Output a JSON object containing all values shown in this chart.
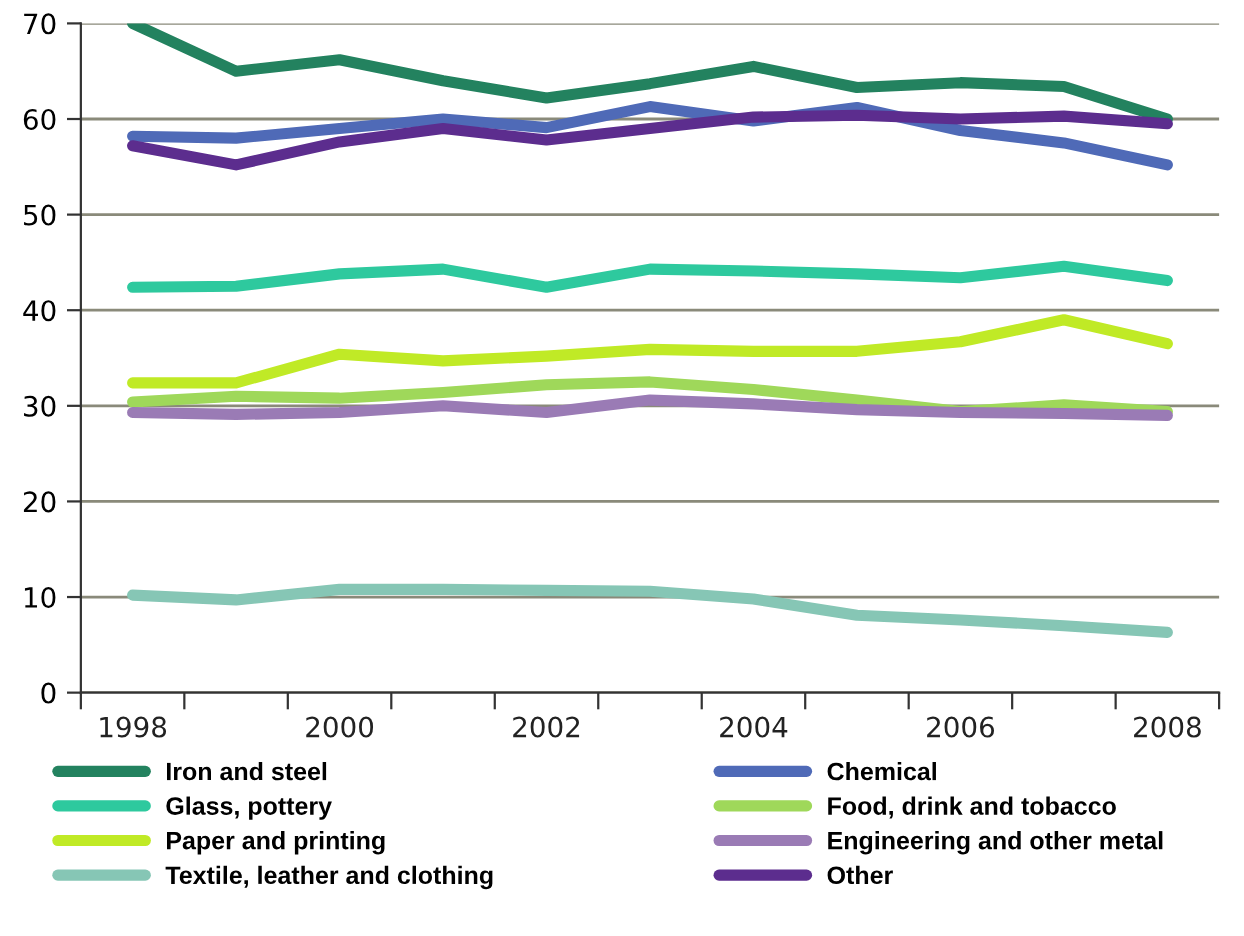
{
  "chart_data": {
    "type": "line",
    "x": [
      1998,
      1999,
      2000,
      2001,
      2002,
      2003,
      2004,
      2005,
      2006,
      2007,
      2008
    ],
    "xlim": [
      1997.5,
      2008.5
    ],
    "xticks": [
      {
        "value": 1997.5,
        "label": null
      },
      {
        "value": 1998,
        "label": "1998"
      },
      {
        "value": 1998.5,
        "label": null
      },
      {
        "value": 1999.5,
        "label": null
      },
      {
        "value": 2000,
        "label": "2000"
      },
      {
        "value": 2000.5,
        "label": null
      },
      {
        "value": 2001.5,
        "label": null
      },
      {
        "value": 2002,
        "label": "2002"
      },
      {
        "value": 2002.5,
        "label": null
      },
      {
        "value": 2003.5,
        "label": null
      },
      {
        "value": 2004,
        "label": "2004"
      },
      {
        "value": 2004.5,
        "label": null
      },
      {
        "value": 2005.5,
        "label": null
      },
      {
        "value": 2006,
        "label": "2006"
      },
      {
        "value": 2006.5,
        "label": null
      },
      {
        "value": 2007.5,
        "label": null
      },
      {
        "value": 2008,
        "label": "2008"
      },
      {
        "value": 2008.5,
        "label": null
      }
    ],
    "ylim": [
      0,
      70
    ],
    "yticks": [
      0,
      10,
      20,
      30,
      40,
      50,
      60,
      70
    ],
    "grid": "y",
    "legend": "bottom",
    "marker": "none",
    "line_style": "solid",
    "series": [
      {
        "name": "Iron and steel",
        "color": "#23825f",
        "values": [
          70,
          65,
          66.2,
          64,
          62.2,
          63.7,
          65.5,
          63.3,
          63.8,
          63.4,
          60
        ]
      },
      {
        "name": "Chemical",
        "color": "#4f6ab7",
        "values": [
          58.2,
          58,
          59,
          60,
          59.1,
          61.3,
          59.8,
          61.2,
          58.8,
          57.5,
          55.2
        ]
      },
      {
        "name": "Glass, pottery",
        "color": "#2ec99e",
        "values": [
          42.4,
          42.5,
          43.8,
          44.3,
          42.4,
          44.3,
          44.1,
          43.8,
          43.4,
          44.6,
          43.1
        ]
      },
      {
        "name": "Food, drink and tobacco",
        "color": "#9fd85a",
        "values": [
          30.4,
          31.0,
          30.8,
          31.4,
          32.2,
          32.5,
          31.7,
          30.6,
          29.4,
          30.1,
          29.4
        ]
      },
      {
        "name": "Paper and printing",
        "color": "#c0ea26",
        "values": [
          32.4,
          32.4,
          35.4,
          34.7,
          35.2,
          35.9,
          35.7,
          35.7,
          36.7,
          39.0,
          36.5
        ]
      },
      {
        "name": "Engineering and other metal",
        "color": "#9a7bb5",
        "values": [
          29.3,
          29.1,
          29.3,
          30.0,
          29.3,
          30.6,
          30.2,
          29.6,
          29.3,
          29.2,
          29.0
        ]
      },
      {
        "name": "Textile, leather and clothing",
        "color": "#86c6b5",
        "values": [
          10.2,
          9.7,
          10.8,
          10.8,
          10.7,
          10.6,
          9.8,
          8.1,
          7.6,
          7.0,
          6.3
        ]
      },
      {
        "name": "Other",
        "color": "#5c2d8e",
        "values": [
          57.2,
          55.2,
          57.6,
          59,
          57.8,
          59,
          60.2,
          60.4,
          60,
          60.3,
          59.5
        ]
      }
    ]
  }
}
